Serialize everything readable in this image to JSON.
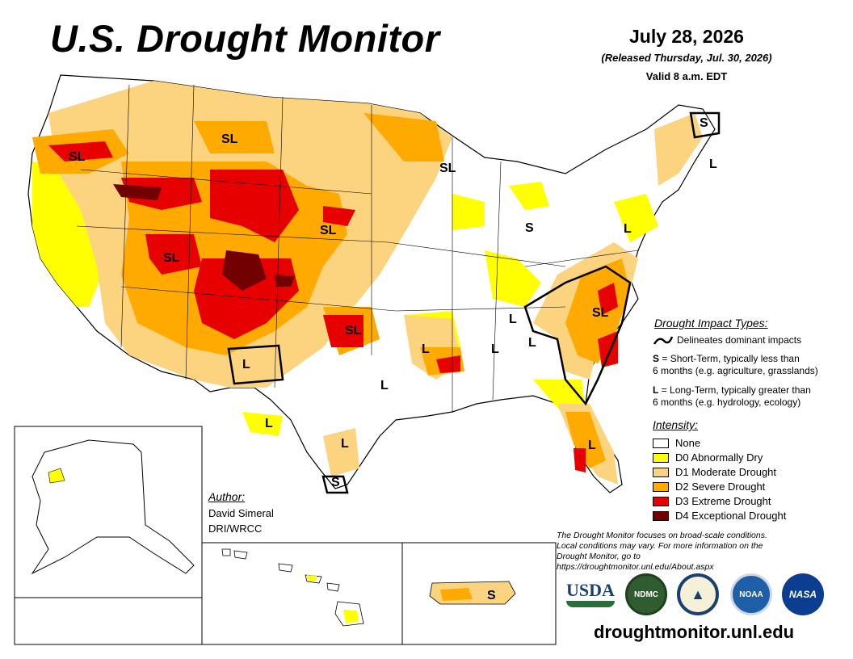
{
  "header": {
    "title": "U.S. Drought Monitor",
    "date": "July 28, 2026",
    "released": "(Released Thursday, Jul. 30, 2026)",
    "valid": "Valid 8 a.m. EDT"
  },
  "map_labels": [
    "SL",
    "SL",
    "SL",
    "SL",
    "SL",
    "SL",
    "SL",
    "S",
    "S",
    "S",
    "S",
    "L",
    "L",
    "L",
    "L",
    "L",
    "L",
    "L",
    "L",
    "L",
    "L",
    "L"
  ],
  "impact_types": {
    "heading": "Drought Impact Types:",
    "delineates": "Delineates dominant impacts",
    "short_term_key": "S",
    "short_term_text": " = Short-Term, typically less than",
    "short_term_text2": "6 months (e.g. agriculture, grasslands)",
    "long_term_key": "L",
    "long_term_text": " = Long-Term, typically greater than",
    "long_term_text2": "6 months (e.g. hydrology, ecology)"
  },
  "intensity": {
    "heading": "Intensity:",
    "levels": [
      {
        "label": "None",
        "color": "#ffffff"
      },
      {
        "label": "D0 Abnormally Dry",
        "color": "#ffff00"
      },
      {
        "label": "D1 Moderate Drought",
        "color": "#fcd37f"
      },
      {
        "label": "D2 Severe Drought",
        "color": "#ffaa00"
      },
      {
        "label": "D3 Extreme Drought",
        "color": "#e60000"
      },
      {
        "label": "D4 Exceptional Drought",
        "color": "#730000"
      }
    ]
  },
  "author": {
    "heading": "Author:",
    "name": "David Simeral",
    "org": "DRI/WRCC"
  },
  "note": {
    "line1": "The Drought Monitor focuses on broad-scale conditions.",
    "line2": "Local conditions may vary. For more information on the",
    "line3": "Drought Monitor, go to https://droughtmonitor.unl.edu/About.aspx"
  },
  "logos": {
    "usda": "USDA",
    "ndmc": "NDMC",
    "noaa": "NOAA",
    "nasa": "NASA"
  },
  "url": "droughtmonitor.unl.edu"
}
